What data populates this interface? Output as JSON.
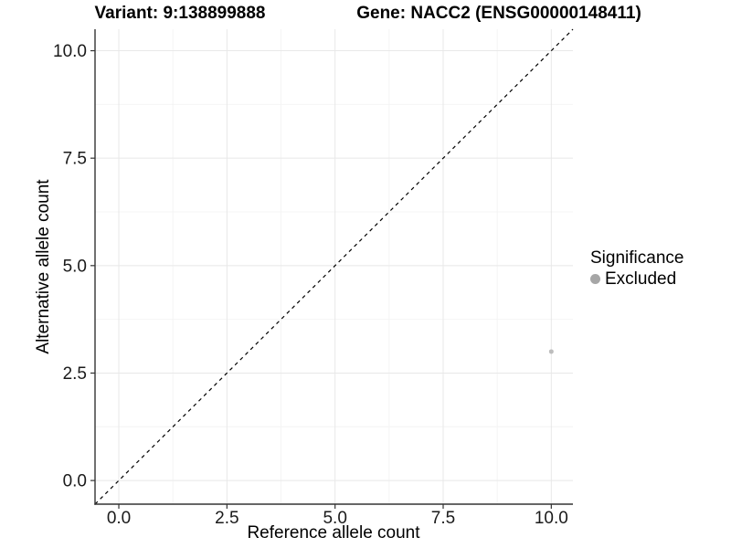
{
  "header": {
    "variant_title": "Variant: 9:138899888",
    "gene_title": "Gene: NACC2 (ENSG00000148411)"
  },
  "legend": {
    "title": "Significance",
    "items": [
      {
        "label": "Excluded",
        "color": "#a6a6a6"
      }
    ]
  },
  "colors": {
    "axis_line": "#333333",
    "tick_mark": "#333333",
    "tick_text": "#1a1a1a",
    "grid_major": "#e8e8e8",
    "grid_minor": "#f4f4f4",
    "identity_line": "#000000",
    "point": "#bdbdbd"
  },
  "chart_data": {
    "type": "scatter",
    "title": "Variant: 9:138899888 — Gene: NACC2 (ENSG00000148411)",
    "xlabel": "Reference allele count",
    "ylabel": "Alternative allele count",
    "xlim": [
      -0.55,
      10.5
    ],
    "ylim": [
      -0.55,
      10.5
    ],
    "x_ticks": [
      0.0,
      2.5,
      5.0,
      7.5,
      10.0
    ],
    "y_ticks": [
      0.0,
      2.5,
      5.0,
      7.5,
      10.0
    ],
    "x_tick_labels": [
      "0.0",
      "2.5",
      "5.0",
      "7.5",
      "10.0"
    ],
    "y_tick_labels": [
      "0.0",
      "2.5",
      "5.0",
      "7.5",
      "10.0"
    ],
    "x_minor_ticks": [
      1.25,
      3.75,
      6.25,
      8.75
    ],
    "y_minor_ticks": [
      1.25,
      3.75,
      6.25,
      8.75
    ],
    "grid": true,
    "legend_position": "right",
    "legend_title": "Significance",
    "series": [
      {
        "name": "Excluded",
        "color": "#bdbdbd",
        "points": [
          {
            "x": 10,
            "y": 3
          }
        ]
      }
    ],
    "reference_line": {
      "equation": "y = x",
      "style": "dashed"
    }
  }
}
